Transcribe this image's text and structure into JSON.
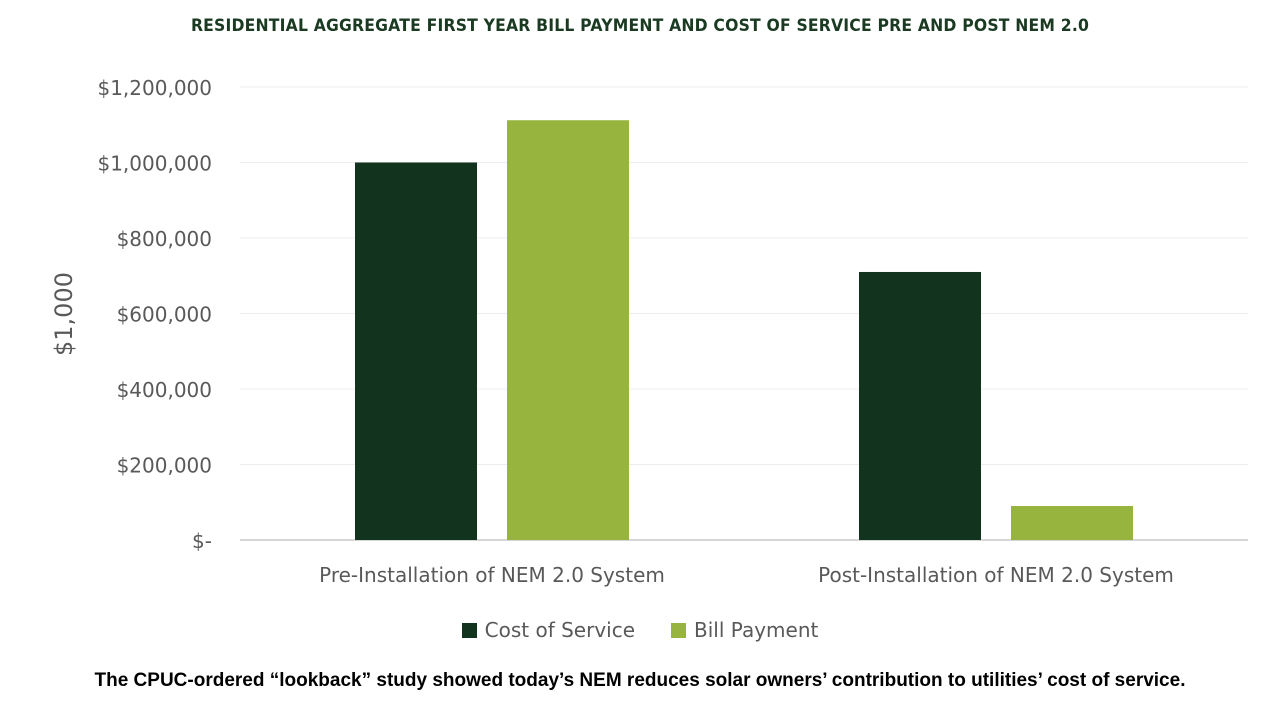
{
  "chart_data": {
    "type": "bar",
    "title": "RESIDENTIAL AGGREGATE FIRST YEAR BILL PAYMENT AND COST OF SERVICE PRE AND POST NEM 2.0",
    "ylabel": "$1,000",
    "xlabel": "",
    "categories": [
      "Pre-Installation of NEM 2.0 System",
      "Post-Installation of NEM 2.0 System"
    ],
    "series": [
      {
        "name": "Cost of Service",
        "color": "#12341f",
        "values": [
          1000000,
          710000
        ]
      },
      {
        "name": "Bill Payment",
        "color": "#97b43e",
        "values": [
          1112000,
          90000
        ]
      }
    ],
    "ylim": [
      0,
      1200000
    ],
    "yticks": [
      {
        "value": 0,
        "label": "$-"
      },
      {
        "value": 200000,
        "label": "$200,000"
      },
      {
        "value": 400000,
        "label": "$400,000"
      },
      {
        "value": 600000,
        "label": "$600,000"
      },
      {
        "value": 800000,
        "label": "$800,000"
      },
      {
        "value": 1000000,
        "label": "$1,000,000"
      },
      {
        "value": 1200000,
        "label": "$1,200,000"
      }
    ],
    "grid": true,
    "legend_position": "bottom"
  },
  "caption": "The CPUC-ordered “lookback” study showed today’s NEM reduces solar owners’ contribution to utilities’ cost of service."
}
